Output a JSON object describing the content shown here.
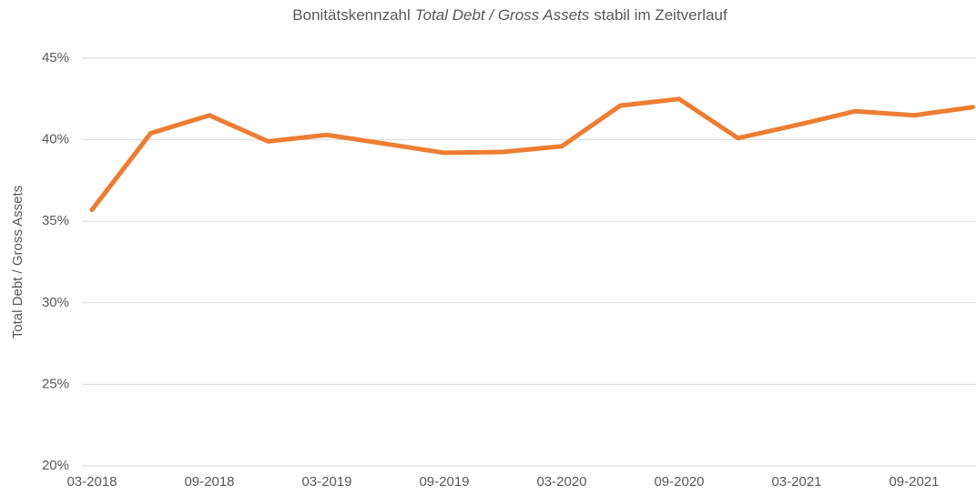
{
  "chart_data": {
    "type": "line",
    "title": [
      {
        "text": "Bonitätskennzahl",
        "italic": false
      },
      {
        "text": "Total Debt / Gross Assets",
        "italic": true
      },
      {
        "text": "stabil im Zeitverlauf",
        "italic": false
      }
    ],
    "y_label": "Total Debt / Gross Assets",
    "categories": [
      "03-2018",
      null,
      "09-2018",
      null,
      "03-2019",
      null,
      "09-2019",
      null,
      "03-2020",
      null,
      "09-2020",
      null,
      "03-2021",
      null,
      "09-2021",
      null
    ],
    "series": [
      {
        "name": "Total Debt / Gross Assets",
        "color": "#ed7d31",
        "values": [
          35.7,
          40.4,
          41.5,
          39.9,
          40.3,
          39.75,
          39.2,
          39.25,
          39.6,
          42.1,
          42.5,
          40.1,
          40.9,
          41.75,
          41.5,
          42.0
        ]
      }
    ],
    "ylim": [
      20,
      45
    ],
    "yticks": [
      {
        "value": 20,
        "label": "20%"
      },
      {
        "value": 25,
        "label": "25%"
      },
      {
        "value": 30,
        "label": "30%"
      },
      {
        "value": 35,
        "label": "35%"
      },
      {
        "value": 40,
        "label": "40%"
      },
      {
        "value": 45,
        "label": "45%"
      }
    ],
    "grid": true
  }
}
